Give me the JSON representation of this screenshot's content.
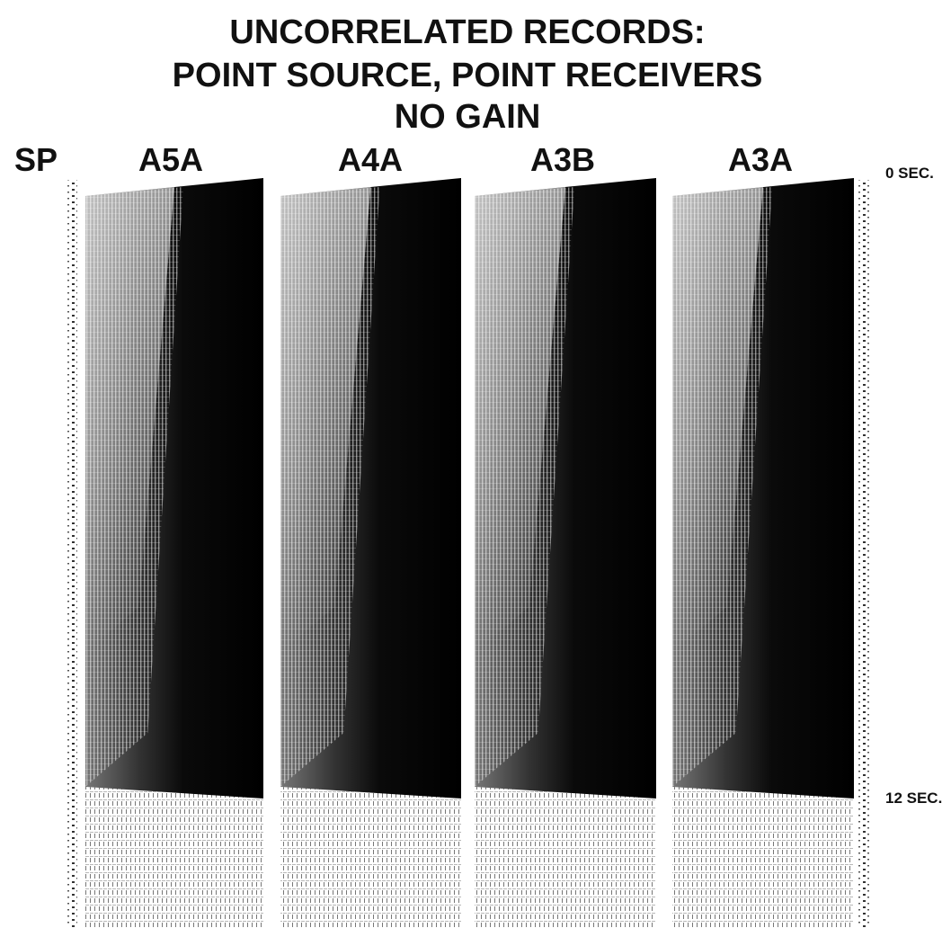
{
  "title": {
    "lines": [
      "UNCORRELATED RECORDS:",
      "POINT SOURCE, POINT RECEIVERS",
      "NO GAIN"
    ]
  },
  "labels": {
    "sp": "SP",
    "records": [
      "A5A",
      "A4A",
      "A3B",
      "A3A"
    ]
  },
  "time_labels": {
    "start": "0 SEC.",
    "end": "12 SEC."
  }
}
